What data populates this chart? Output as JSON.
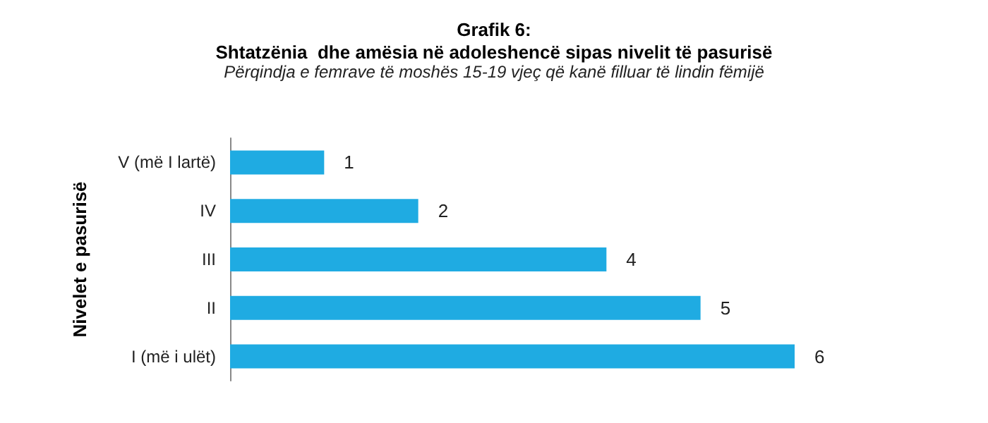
{
  "chart_data": {
    "type": "bar",
    "orientation": "horizontal",
    "title": "Grafik 6:\nShtatzënia  dhe amësia në adoleshencë sipas nivelit të pasurisë",
    "subtitle": "Përqindja e femrave të moshës 15-19 vjeç që kanë filluar të lindin fëmijë",
    "ylabel": "Nivelet e pasurisë",
    "categories": [
      "V (më I lartë)",
      "IV",
      "III",
      "II",
      "I (më i ulët)"
    ],
    "values": [
      1,
      2,
      4,
      5,
      6
    ],
    "color": "#1fabe2",
    "data_labels": true
  }
}
